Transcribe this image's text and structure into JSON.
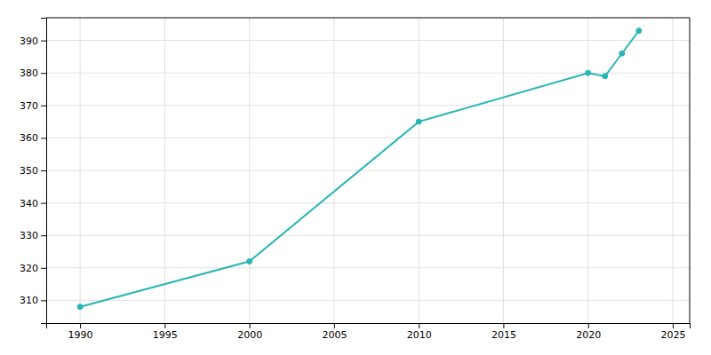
{
  "chart_data": {
    "type": "line",
    "x": [
      1990,
      2000,
      2010,
      2020,
      2021,
      2022,
      2023
    ],
    "values": [
      308,
      322,
      365,
      380,
      379,
      386,
      393
    ],
    "color": "#2ab5b5",
    "marker": "circle",
    "xlim": [
      1988,
      2026
    ],
    "ylim": [
      303,
      397
    ],
    "xticks": [
      1990,
      1995,
      2000,
      2005,
      2010,
      2015,
      2020,
      2025
    ],
    "yticks": [
      310,
      320,
      330,
      340,
      350,
      360,
      370,
      380,
      390
    ],
    "grid": true
  }
}
